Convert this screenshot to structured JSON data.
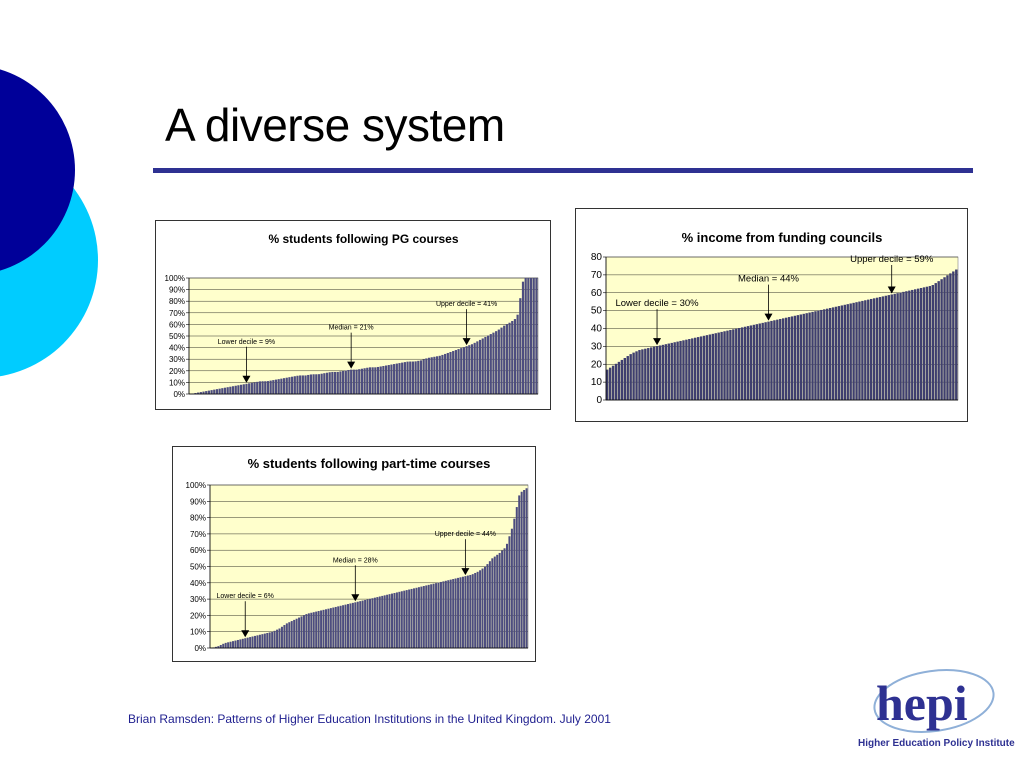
{
  "slide": {
    "title": "A diverse system",
    "footer": "Brian Ramsden:  Patterns of Higher Education Institutions in the United Kingdom.  July 2001",
    "logo": {
      "text": "hepi",
      "caption": "Higher Education Policy Institute"
    }
  },
  "colors": {
    "accent": "#2e3192",
    "deco_dark": "#000099",
    "deco_light": "#00ccff",
    "plot_bg": "#ffffcc",
    "bar": "#4d4d7f"
  },
  "chart_data": [
    {
      "id": "pg",
      "type": "bar",
      "title": "% students following PG courses",
      "ylim": [
        0,
        100
      ],
      "yticks": [
        "0%",
        "10%",
        "20%",
        "30%",
        "40%",
        "50%",
        "60%",
        "70%",
        "80%",
        "90%",
        "100%"
      ],
      "grid": true,
      "bar_count": 130,
      "sorted_values": [
        0,
        1,
        2,
        3,
        4,
        5,
        6,
        7,
        8,
        9,
        10,
        11,
        11,
        12,
        13,
        14,
        15,
        16,
        16,
        17,
        17,
        18,
        19,
        19,
        20,
        21,
        21,
        22,
        23,
        23,
        24,
        25,
        26,
        27,
        28,
        28,
        29,
        31,
        32,
        33,
        35,
        37,
        39,
        41,
        43,
        46,
        49,
        52,
        55,
        59,
        62,
        66,
        100,
        100,
        100
      ],
      "annotations": [
        {
          "label": "Lower decile = 9%",
          "value": 9
        },
        {
          "label": "Median = 21%",
          "value": 21
        },
        {
          "label": "Upper decile = 41%",
          "value": 41
        }
      ]
    },
    {
      "id": "funding",
      "type": "bar",
      "title": "% income from funding councils",
      "ylim": [
        0,
        80
      ],
      "yticks": [
        "0",
        "10",
        "20",
        "30",
        "40",
        "50",
        "60",
        "70",
        "80"
      ],
      "grid": true,
      "bar_count": 120,
      "sorted_values": [
        17,
        20,
        23,
        26,
        28,
        29,
        30,
        31,
        32,
        33,
        34,
        35,
        36,
        37,
        38,
        39,
        40,
        41,
        42,
        43,
        44,
        45,
        46,
        47,
        48,
        49,
        50,
        51,
        52,
        53,
        54,
        55,
        56,
        57,
        58,
        59,
        60,
        61,
        62,
        63,
        64,
        67,
        70,
        73
      ],
      "annotations": [
        {
          "label": "Lower decile = 30%",
          "value": 30
        },
        {
          "label": "Median = 44%",
          "value": 44
        },
        {
          "label": "Upper decile = 59%",
          "value": 59
        }
      ]
    },
    {
      "id": "parttime",
      "type": "bar",
      "title": "% students following part-time courses",
      "ylim": [
        0,
        100
      ],
      "yticks": [
        "0%",
        "10%",
        "20%",
        "30%",
        "40%",
        "50%",
        "60%",
        "70%",
        "80%",
        "90%",
        "100%"
      ],
      "grid": true,
      "bar_count": 130,
      "sorted_values": [
        0,
        1,
        3,
        4,
        5,
        6,
        7,
        8,
        9,
        10,
        12,
        15,
        17,
        19,
        21,
        22,
        23,
        24,
        25,
        26,
        27,
        28,
        29,
        30,
        31,
        32,
        33,
        34,
        35,
        36,
        37,
        38,
        39,
        40,
        41,
        42,
        43,
        44,
        45,
        47,
        50,
        55,
        58,
        62,
        75,
        95,
        98
      ],
      "annotations": [
        {
          "label": "Lower decile = 6%",
          "value": 6
        },
        {
          "label": "Median = 28%",
          "value": 28
        },
        {
          "label": "Upper decile = 44%",
          "value": 44
        }
      ]
    }
  ]
}
